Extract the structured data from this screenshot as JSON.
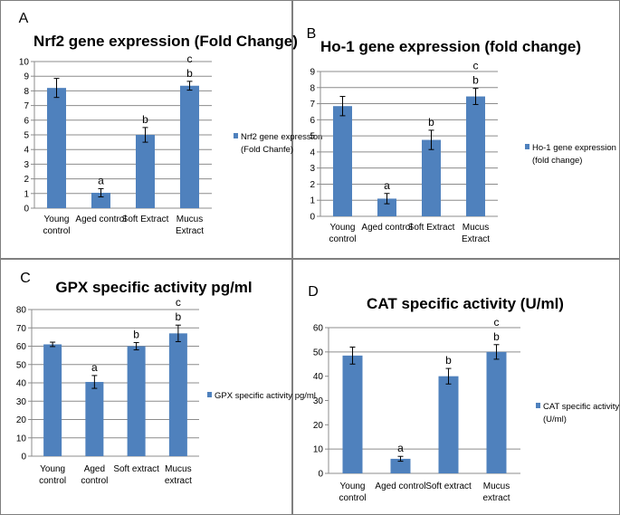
{
  "figure": {
    "border_color": "#7f7f7f",
    "bar_color": "#4f81bd",
    "grid_color": "#8c8c8c"
  },
  "chart_data": [
    {
      "type": "bar",
      "panel_letter": "A",
      "title": "Nrf2 gene expression (Fold Change)",
      "categories": [
        [
          "Young",
          "control"
        ],
        [
          "Aged control"
        ],
        [
          "Soft Extract"
        ],
        [
          "Mucus",
          "Extract"
        ]
      ],
      "values": [
        8.2,
        1.05,
        5.0,
        8.35
      ],
      "errors": [
        0.65,
        0.28,
        0.5,
        0.3
      ],
      "labels": [
        [],
        [
          "a"
        ],
        [
          "b"
        ],
        [
          "b",
          "c"
        ]
      ],
      "ylim": [
        0,
        10
      ],
      "yticks": [
        0,
        1,
        2,
        3,
        4,
        5,
        6,
        7,
        8,
        9,
        10
      ],
      "grid": "all",
      "legend": [
        "Nrf2 gene expression",
        "(Fold Chanfe)"
      ],
      "xlabel": "",
      "ylabel": ""
    },
    {
      "type": "bar",
      "panel_letter": "B",
      "title": "Ho-1 gene expression (fold change)",
      "categories": [
        [
          "Young",
          "control"
        ],
        [
          "Aged control"
        ],
        [
          "Soft Extract"
        ],
        [
          "Mucus",
          "Extract"
        ]
      ],
      "values": [
        6.85,
        1.1,
        4.75,
        7.45
      ],
      "errors": [
        0.6,
        0.32,
        0.6,
        0.5
      ],
      "labels": [
        [],
        [
          "a"
        ],
        [
          "b"
        ],
        [
          "b",
          "c"
        ]
      ],
      "ylim": [
        0,
        9
      ],
      "yticks": [
        0,
        1,
        2,
        3,
        4,
        5,
        6,
        7,
        8,
        9
      ],
      "grid": "all",
      "legend": [
        "Ho-1 gene expression",
        "(fold change)"
      ],
      "xlabel": "",
      "ylabel": ""
    },
    {
      "type": "bar",
      "panel_letter": "C",
      "title": "GPX specific activity pg/ml",
      "categories": [
        [
          "Young",
          "control"
        ],
        [
          "Aged",
          "control"
        ],
        [
          "Soft extract"
        ],
        [
          "Mucus",
          "extract"
        ]
      ],
      "values": [
        61,
        40.5,
        60,
        67
      ],
      "errors": [
        1.2,
        3.5,
        2,
        4.5
      ],
      "labels": [
        [],
        [
          "a"
        ],
        [
          "b"
        ],
        [
          "b",
          "c"
        ]
      ],
      "ylim": [
        0,
        80
      ],
      "yticks": [
        0,
        10,
        20,
        30,
        40,
        50,
        60,
        70,
        80
      ],
      "grid": "all",
      "legend": [
        "GPX specific activity pg/ml"
      ],
      "xlabel": "",
      "ylabel": ""
    },
    {
      "type": "bar",
      "panel_letter": "D",
      "title": "CAT specific activity (U/ml)",
      "categories": [
        [
          "Young",
          "control"
        ],
        [
          "Aged control"
        ],
        [
          "Soft extract"
        ],
        [
          "Mucus",
          "extract"
        ]
      ],
      "values": [
        48.5,
        6,
        40,
        50
      ],
      "errors": [
        3.5,
        1,
        3.2,
        3
      ],
      "labels": [
        [],
        [
          "a"
        ],
        [
          "b"
        ],
        [
          "b",
          "c"
        ]
      ],
      "ylim": [
        0,
        60
      ],
      "yticks": [
        0,
        10,
        20,
        30,
        40,
        50,
        60
      ],
      "grid": [
        0,
        10,
        50,
        60
      ],
      "legend": [
        "CAT specific activity",
        "(U/ml)"
      ],
      "xlabel": "",
      "ylabel": ""
    }
  ]
}
